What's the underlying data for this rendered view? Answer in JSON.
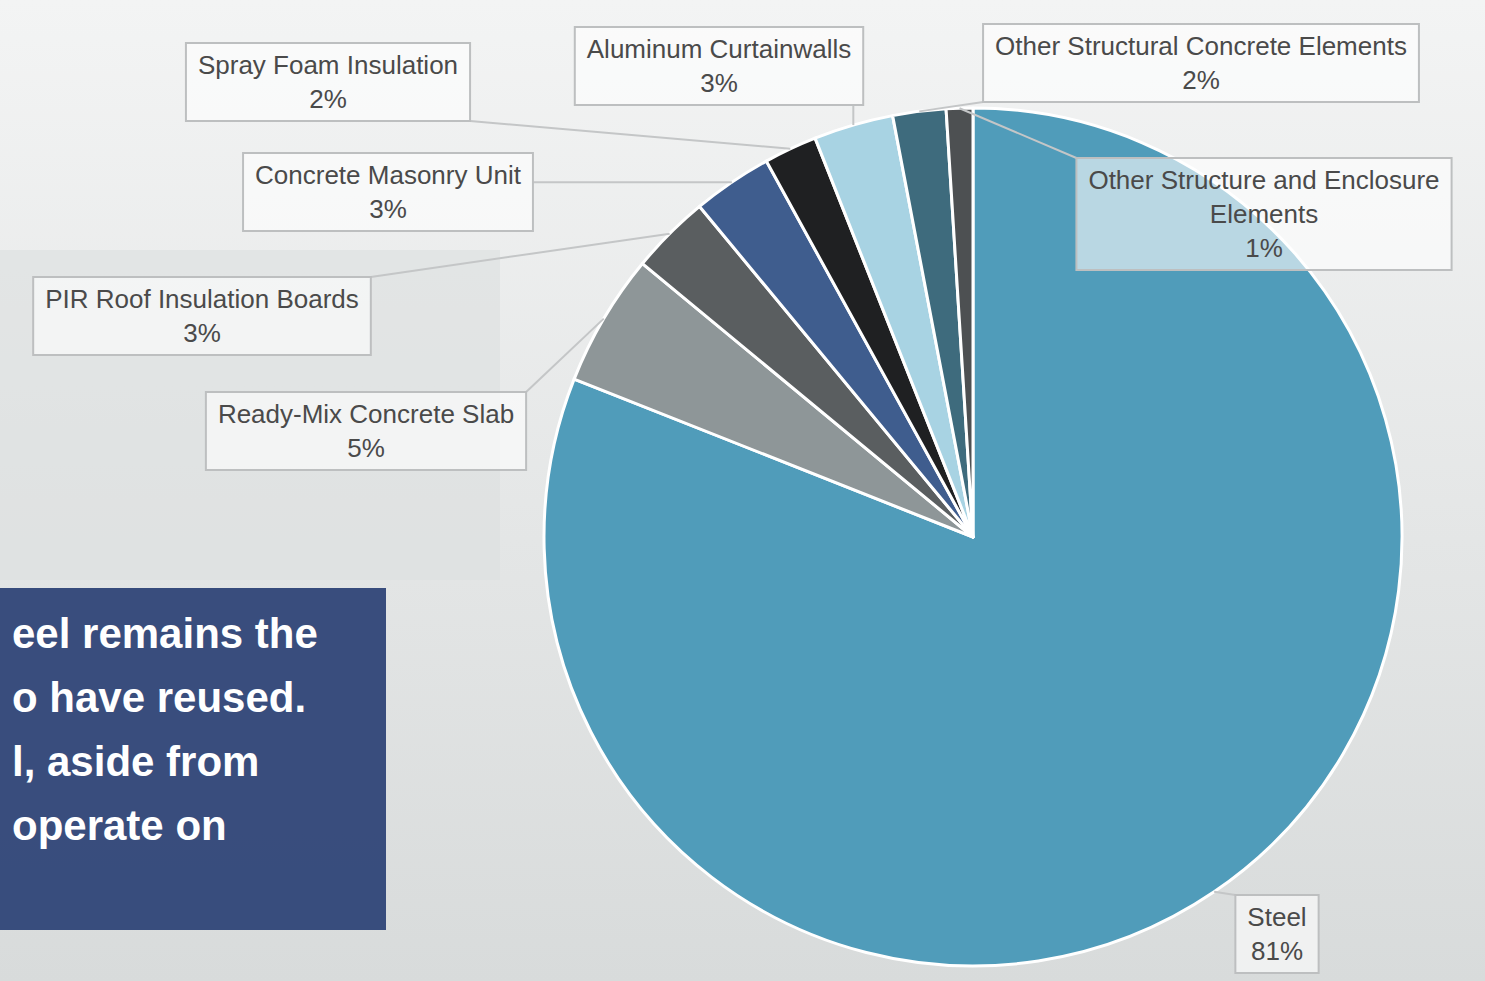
{
  "chart_data": {
    "type": "pie",
    "categories": [
      "Steel",
      "Ready-Mix Concrete Slab",
      "PIR Roof Insulation Boards",
      "Concrete Masonry Unit",
      "Spray Foam Insulation",
      "Aluminum Curtainwalls",
      "Other Structural Concrete Elements",
      "Other Structure and Enclosure Elements"
    ],
    "values": [
      81,
      5,
      3,
      3,
      2,
      3,
      2,
      1
    ],
    "value_labels": [
      "81%",
      "5%",
      "3%",
      "3%",
      "2%",
      "3%",
      "2%",
      "1%"
    ],
    "colors": [
      "#509cba",
      "#8e9698",
      "#5a5e60",
      "#3f5d8e",
      "#1f2022",
      "#a8d3e3",
      "#3e6b7d",
      "#4d5052"
    ],
    "data_labels": true,
    "annotations": [
      "eel remains the",
      "o have reused.",
      "l, aside from",
      "operate on"
    ]
  }
}
